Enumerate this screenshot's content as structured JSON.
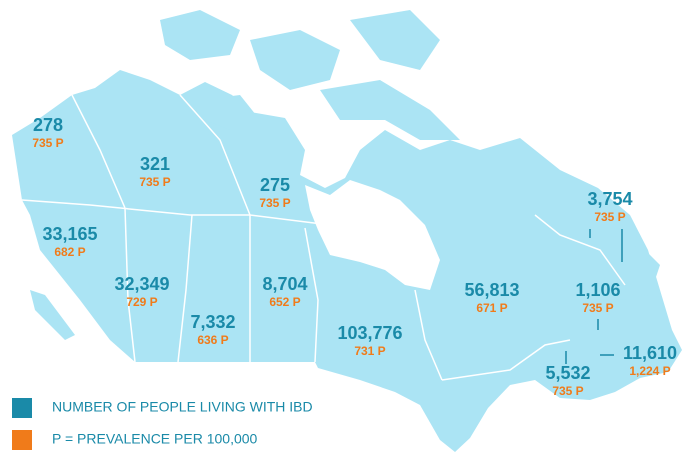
{
  "regions": [
    {
      "count": "278",
      "prevalence": "735 P"
    },
    {
      "count": "321",
      "prevalence": "735 P"
    },
    {
      "count": "275",
      "prevalence": "735 P"
    },
    {
      "count": "33,165",
      "prevalence": "682 P"
    },
    {
      "count": "32,349",
      "prevalence": "729 P"
    },
    {
      "count": "7,332",
      "prevalence": "636 P"
    },
    {
      "count": "8,704",
      "prevalence": "652 P"
    },
    {
      "count": "103,776",
      "prevalence": "731 P"
    },
    {
      "count": "56,813",
      "prevalence": "671 P"
    },
    {
      "count": "3,754",
      "prevalence": "735 P"
    },
    {
      "count": "1,106",
      "prevalence": "735 P"
    },
    {
      "count": "5,532",
      "prevalence": "735 P"
    },
    {
      "count": "11,610",
      "prevalence": "1,224 P"
    }
  ],
  "legend": [
    {
      "label": "NUMBER OF PEOPLE LIVING WITH IBD",
      "color": "#1a8aa8"
    },
    {
      "label": "P = PREVALENCE PER 100,000",
      "color": "#f07b1a"
    }
  ]
}
